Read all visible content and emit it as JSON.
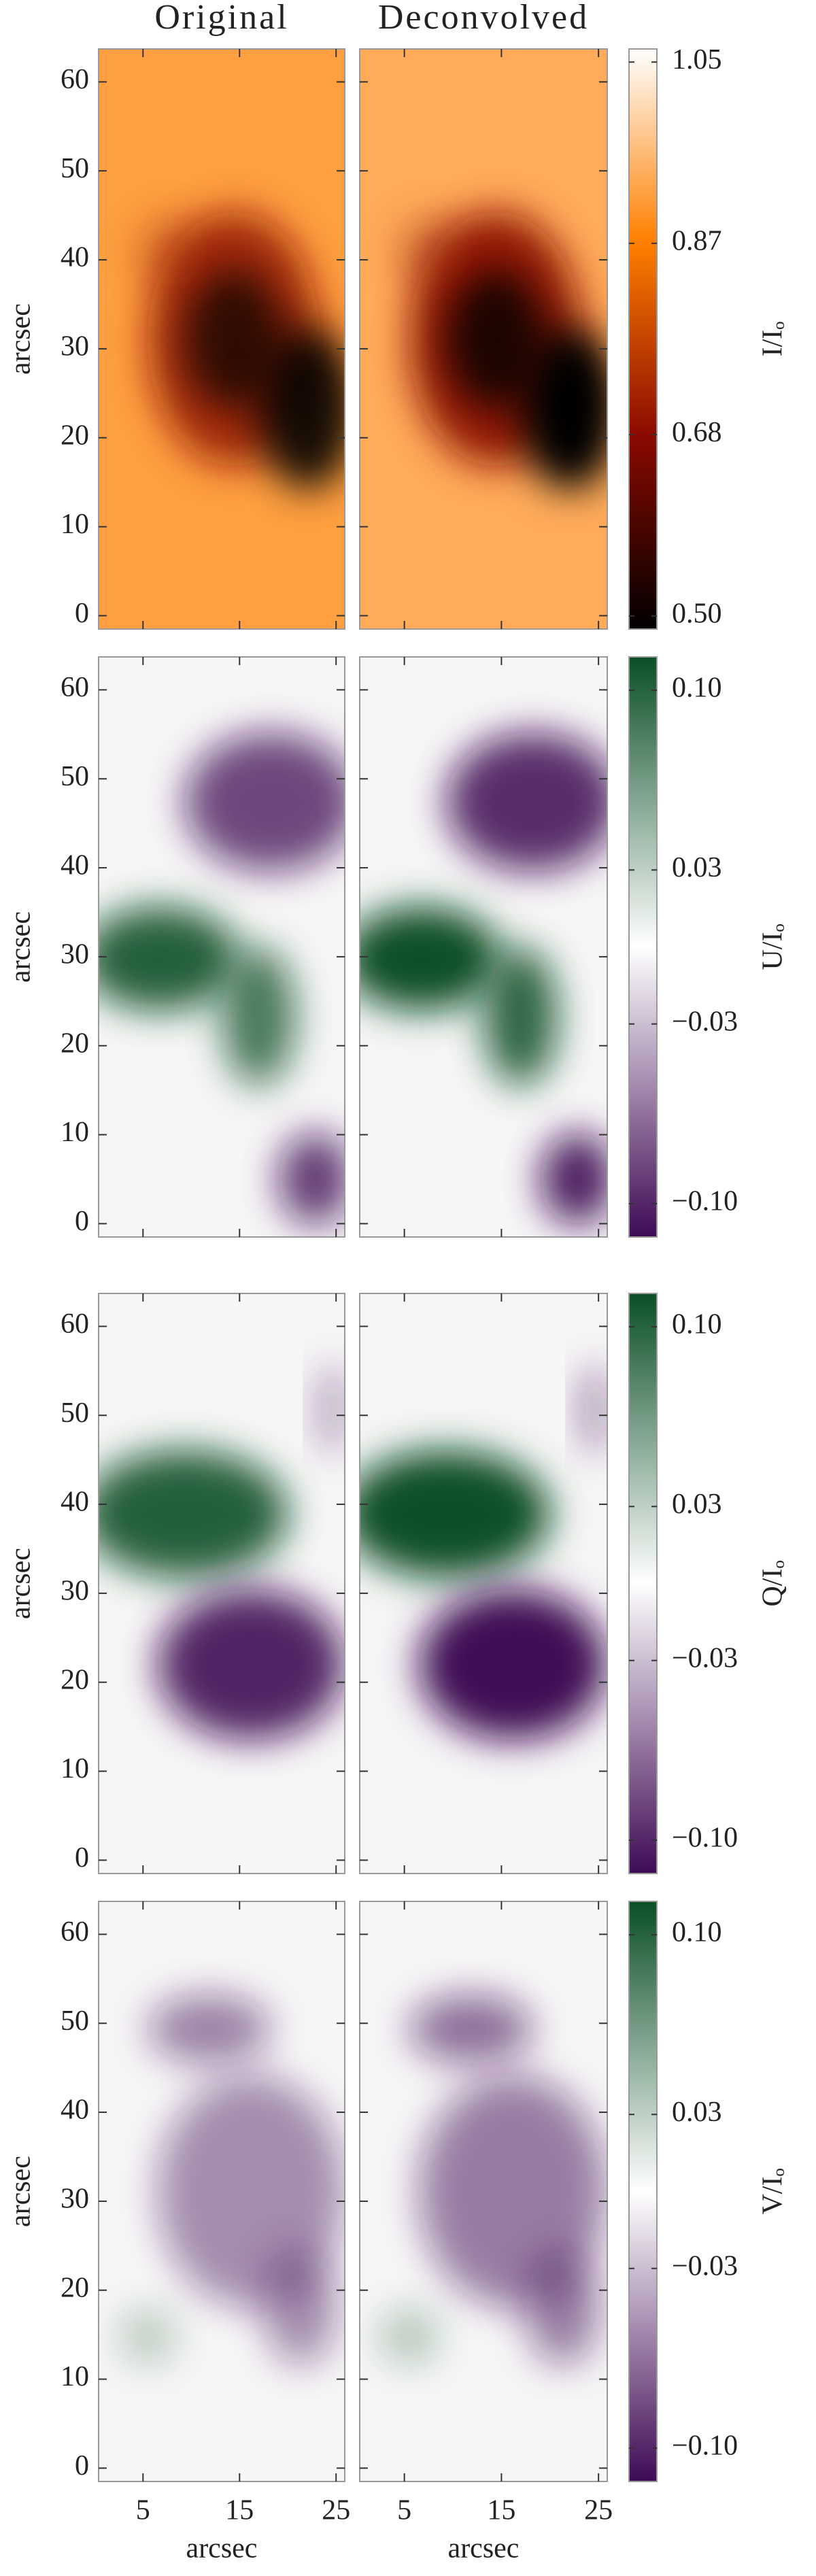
{
  "chart_data": [
    {
      "type": "image",
      "titles": [
        "Original",
        "Deconvolved"
      ],
      "ylabel": "arcsec",
      "xlim": [
        0.4,
        25.9
      ],
      "xticks": [
        5,
        15,
        25
      ],
      "ylim": [
        -1.5,
        63.7
      ],
      "yticks": [
        0,
        10,
        20,
        30,
        40,
        50,
        60
      ],
      "colorbar": {
        "label": "I/Iₒ",
        "lim": [
          0.487,
          1.063
        ],
        "ticks": [
          1.05,
          0.87,
          0.68,
          {
            "value": 0.5,
            "label": "0.50"
          }
        ],
        "colors": [
          "#000000",
          "#8b0a00",
          "#ff7f00",
          "#ffffff"
        ]
      }
    },
    {
      "type": "image",
      "ylabel": "arcsec",
      "xlim": [
        0.4,
        25.9
      ],
      "xticks": [
        5,
        15,
        25
      ],
      "ylim": [
        -1.5,
        63.7
      ],
      "yticks": [
        0,
        10,
        20,
        30,
        40,
        50,
        60
      ],
      "colorbar": {
        "label": "U/Iₒ",
        "lim": [
          -0.113,
          0.113
        ],
        "ticks": [
          {
            "value": 0.1,
            "label": "0.10"
          },
          0.03,
          {
            "value": -0.03,
            "label": "−0.03"
          },
          {
            "value": -0.1,
            "label": "−0.10"
          }
        ],
        "colors": [
          "#3f0a55",
          "#ffffff",
          "#0a4f25"
        ]
      }
    },
    {
      "type": "image",
      "ylabel": "arcsec",
      "xlim": [
        0.4,
        25.9
      ],
      "xticks": [
        5,
        15,
        25
      ],
      "ylim": [
        -1.5,
        63.7
      ],
      "yticks": [
        0,
        10,
        20,
        30,
        40,
        50,
        60
      ],
      "colorbar": {
        "label": "Q/Iₒ",
        "lim": [
          -0.113,
          0.113
        ],
        "ticks": [
          {
            "value": 0.1,
            "label": "0.10"
          },
          0.03,
          {
            "value": -0.03,
            "label": "−0.03"
          },
          {
            "value": -0.1,
            "label": "−0.10"
          }
        ],
        "colors": [
          "#3f0a55",
          "#ffffff",
          "#0a4f25"
        ]
      }
    },
    {
      "type": "image",
      "ylabel": "arcsec",
      "xlabel": "arcsec",
      "xlim": [
        0.4,
        25.9
      ],
      "xticks": [
        5,
        15,
        25
      ],
      "ylim": [
        -1.5,
        63.7
      ],
      "yticks": [
        0,
        10,
        20,
        30,
        40,
        50,
        60
      ],
      "colorbar": {
        "label": "V/Iₒ",
        "lim": [
          -0.113,
          0.113
        ],
        "ticks": [
          {
            "value": 0.1,
            "label": "0.10"
          },
          0.03,
          {
            "value": -0.03,
            "label": "−0.03"
          },
          {
            "value": -0.1,
            "label": "−0.10"
          }
        ],
        "colors": [
          "#3f0a55",
          "#ffffff",
          "#0a4f25"
        ]
      }
    }
  ]
}
